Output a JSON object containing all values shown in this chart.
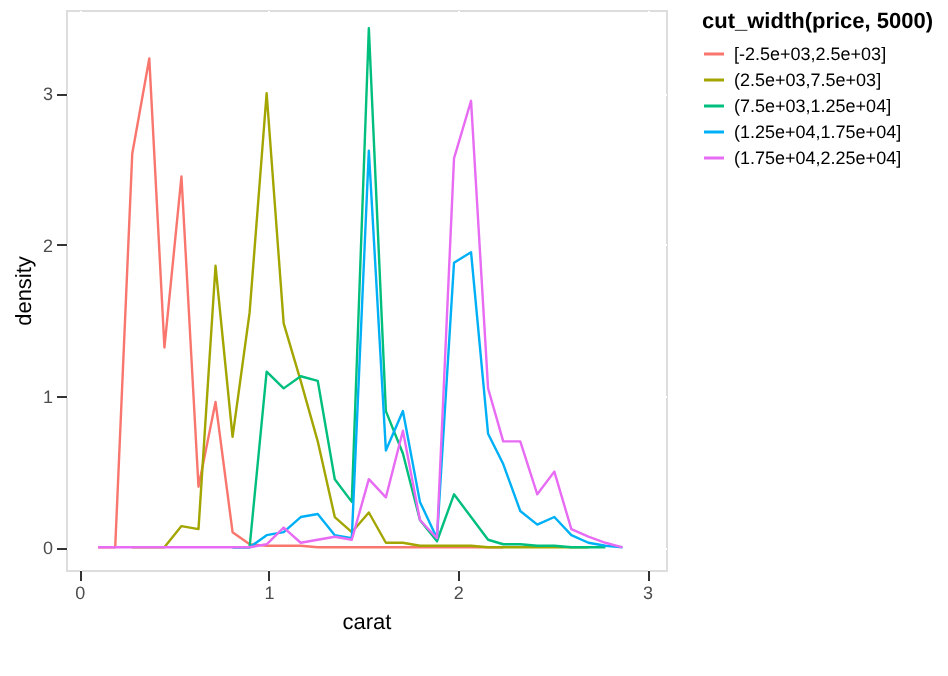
{
  "chart_data": {
    "type": "line",
    "xlabel": "carat",
    "ylabel": "density",
    "legend_title": "cut_width(price, 5000)",
    "x": [
      0.1,
      0.19,
      0.28,
      0.37,
      0.45,
      0.54,
      0.63,
      0.72,
      0.81,
      0.9,
      0.99,
      1.08,
      1.17,
      1.26,
      1.35,
      1.44,
      1.53,
      1.62,
      1.71,
      1.8,
      1.89,
      1.98,
      2.07,
      2.16,
      2.24,
      2.33,
      2.42,
      2.51,
      2.6,
      2.69,
      2.78,
      2.87
    ],
    "series": [
      {
        "name": "[-2.5e+03,2.5e+03]",
        "color": "#f8766d",
        "values": [
          0,
          0,
          2.6,
          3.23,
          1.32,
          2.45,
          0.4,
          0.96,
          0.1,
          0.02,
          0.01,
          0.01,
          0.01,
          0,
          0,
          0,
          0,
          0,
          0,
          0,
          0,
          0,
          0,
          0,
          0,
          null,
          null,
          null,
          null,
          null,
          null,
          null
        ]
      },
      {
        "name": "(2.5e+03,7.5e+03]",
        "color": "#a3a500",
        "values": [
          null,
          null,
          0,
          0,
          0,
          0.14,
          0.12,
          1.86,
          0.73,
          1.55,
          3.0,
          1.48,
          1.1,
          0.7,
          0.2,
          0.1,
          0.23,
          0.03,
          0.03,
          0.01,
          0.01,
          0.01,
          0.01,
          0,
          0,
          0,
          0,
          0,
          0,
          0,
          null,
          null
        ]
      },
      {
        "name": "(7.5e+03,1.25e+04]",
        "color": "#00bf7d",
        "values": [
          null,
          null,
          null,
          null,
          null,
          null,
          null,
          null,
          0,
          0,
          1.16,
          1.05,
          1.13,
          1.1,
          0.45,
          0.3,
          3.43,
          0.9,
          0.62,
          0.18,
          0.04,
          0.35,
          0.2,
          0.05,
          0.02,
          0.02,
          0.01,
          0.01,
          0,
          0,
          0,
          null
        ]
      },
      {
        "name": "(1.25e+04,1.75e+04]",
        "color": "#00b0f6",
        "values": [
          null,
          null,
          null,
          null,
          null,
          null,
          null,
          null,
          0,
          0,
          0.08,
          0.1,
          0.2,
          0.22,
          0.08,
          0.06,
          2.62,
          0.64,
          0.9,
          0.3,
          0.06,
          1.88,
          1.95,
          0.75,
          0.55,
          0.24,
          0.15,
          0.2,
          0.08,
          0.03,
          0.01,
          0
        ]
      },
      {
        "name": "(1.75e+04,2.25e+04]",
        "color": "#e76bf3",
        "values": [
          0,
          0,
          0,
          0,
          0,
          0,
          0,
          0,
          0,
          0,
          0.02,
          0.13,
          0.03,
          0.05,
          0.07,
          0.05,
          0.45,
          0.33,
          0.77,
          0.18,
          0.06,
          2.57,
          2.95,
          1.05,
          0.7,
          0.7,
          0.35,
          0.5,
          0.12,
          0.07,
          0.03,
          0
        ]
      }
    ],
    "xlim": [
      -0.07,
      3.1
    ],
    "ylim": [
      -0.15,
      3.55
    ],
    "xticks": [
      0,
      1,
      2,
      3
    ],
    "yticks": [
      0,
      1,
      2,
      3
    ],
    "grid": true,
    "legend": "right",
    "line_style": "solid",
    "marker": "none"
  }
}
